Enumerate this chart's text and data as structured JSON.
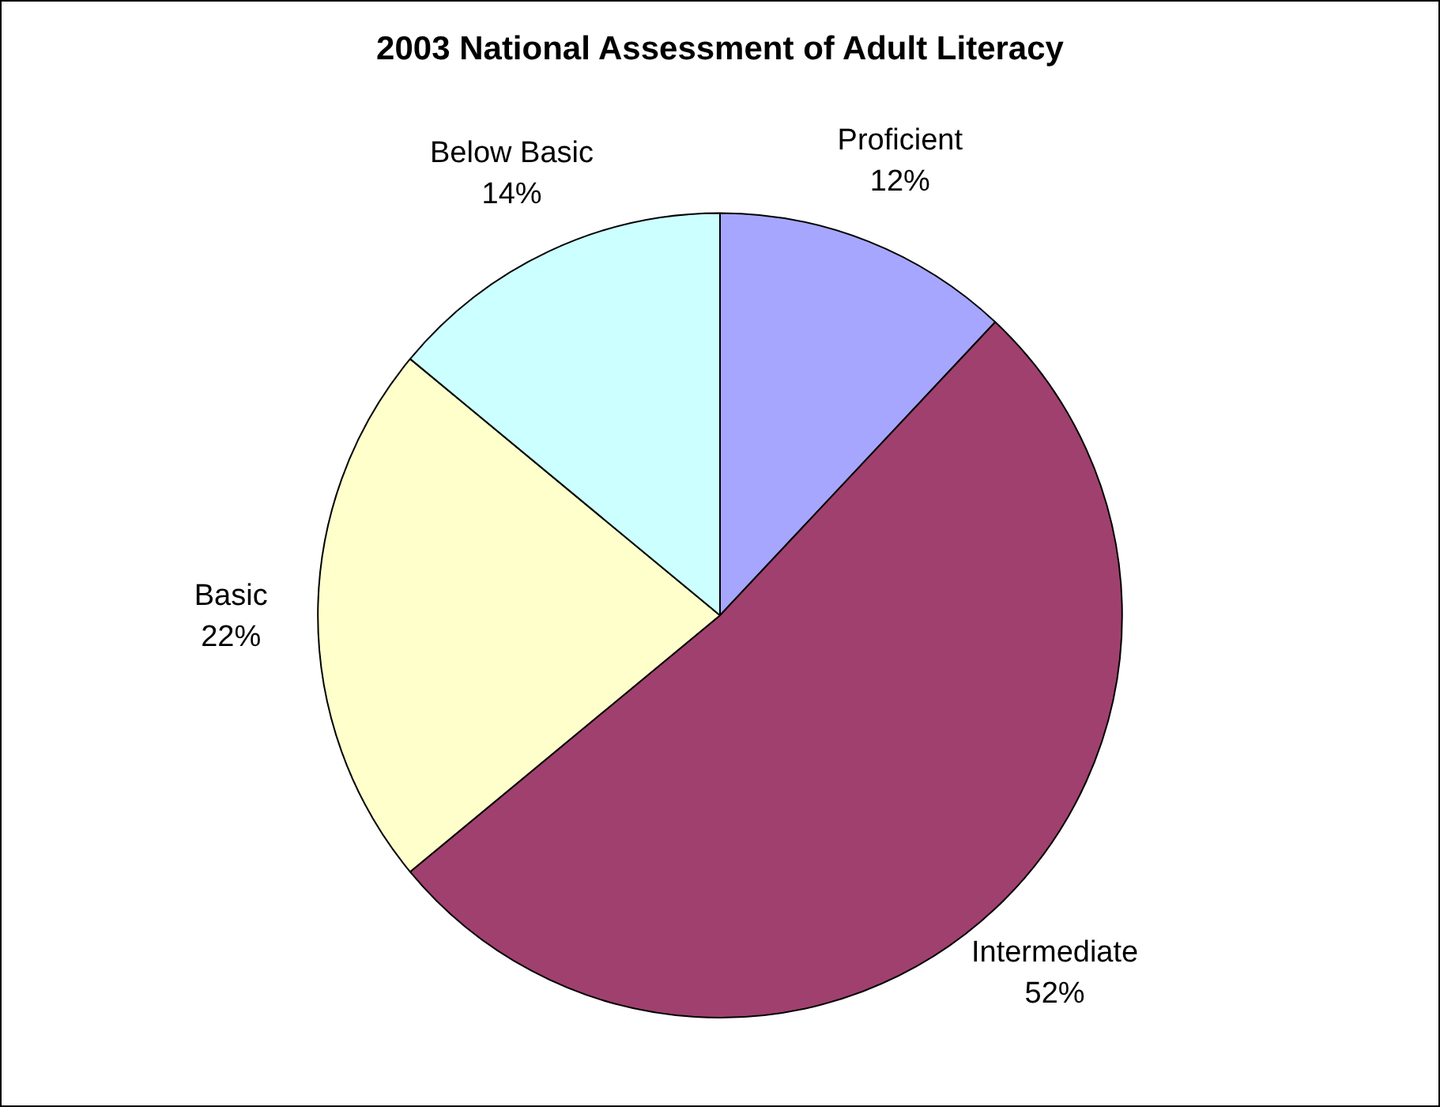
{
  "chart_data": {
    "type": "pie",
    "title": "2003 National Assessment of Adult Literacy",
    "categories": [
      "Proficient",
      "Intermediate",
      "Basic",
      "Below Basic"
    ],
    "values": [
      12,
      52,
      22,
      14
    ],
    "value_labels": [
      "12%",
      "52%",
      "22%",
      "14%"
    ],
    "colors": [
      "#a6a6ff",
      "#a0406e",
      "#ffffcc",
      "#ccffff"
    ],
    "legend": false
  }
}
